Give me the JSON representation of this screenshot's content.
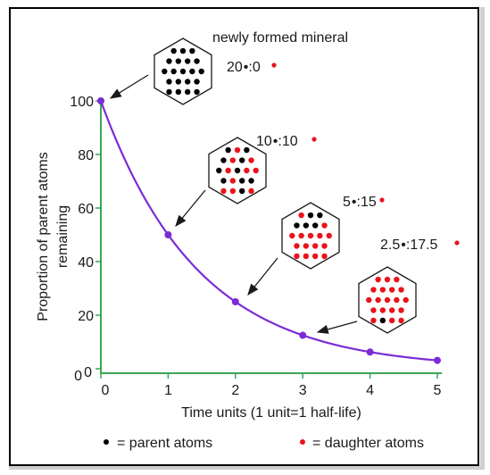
{
  "chart_data": {
    "type": "line",
    "xlabel": "Time units (1 unit=1 half-life)",
    "ylabel": [
      "Proportion of parent atoms",
      "remaining"
    ],
    "xlim": [
      0,
      5
    ],
    "ylim": [
      0,
      100
    ],
    "x_ticks": [
      "0",
      "1",
      "2",
      "3",
      "4",
      "5"
    ],
    "y_ticks": [
      "0",
      "20",
      "40",
      "60",
      "80",
      "100"
    ],
    "points": [
      {
        "x": 0,
        "y": 100
      },
      {
        "x": 1,
        "y": 50
      },
      {
        "x": 2,
        "y": 25
      },
      {
        "x": 3,
        "y": 12.5
      },
      {
        "x": 4,
        "y": 6.25
      },
      {
        "x": 5,
        "y": 3.125
      }
    ],
    "annotations": [
      {
        "title": "newly formed mineral",
        "parent": "20",
        "daughter": "0",
        "sep": ":",
        "at_x": 0
      },
      {
        "title": "",
        "parent": "10",
        "daughter": "10",
        "sep": ":",
        "at_x": 1
      },
      {
        "title": "",
        "parent": "5",
        "daughter": "15",
        "sep": ":",
        "at_x": 2
      },
      {
        "title": "",
        "parent": "2.5",
        "daughter": "17.5",
        "sep": ":",
        "at_x": 3
      }
    ],
    "legend": {
      "parent_label": "= parent atoms",
      "daughter_label": "= daughter atoms"
    },
    "colors": {
      "curve": "#7b2cd6",
      "axes": "#3aa655",
      "parent": "#000000",
      "daughter": "#e8141b"
    }
  }
}
